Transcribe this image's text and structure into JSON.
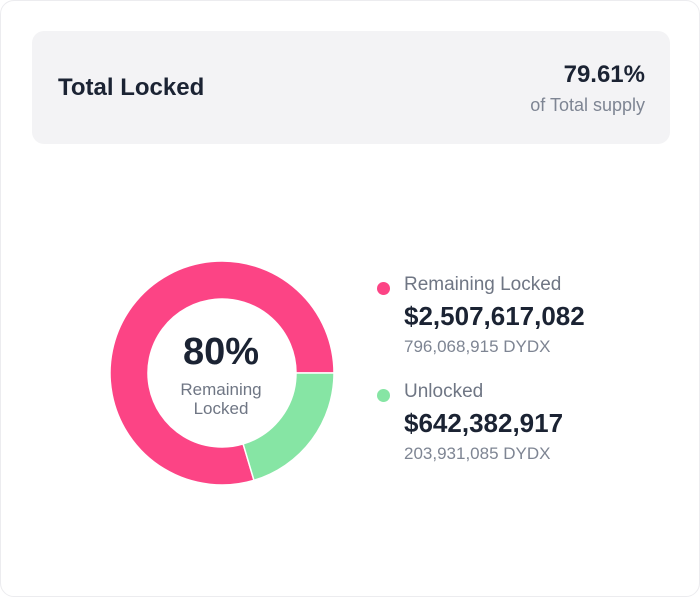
{
  "header": {
    "title": "Total Locked",
    "percent": "79.61%",
    "subtitle": "of Total supply"
  },
  "center": {
    "percent": "80%",
    "label": "Remaining Locked"
  },
  "legend": [
    {
      "label": "Remaining Locked",
      "value": "$2,507,617,082",
      "amount": "796,068,915 DYDX",
      "color": "#fc4485"
    },
    {
      "label": "Unlocked",
      "value": "$642,382,917",
      "amount": "203,931,085 DYDX",
      "color": "#86e5a4"
    }
  ],
  "chart_data": {
    "type": "pie",
    "title": "Total Locked",
    "categories": [
      "Remaining Locked",
      "Unlocked"
    ],
    "values": [
      796068915,
      203931085
    ],
    "usd_values": [
      2507617082,
      642382917
    ],
    "colors": [
      "#fc4485",
      "#86e5a4"
    ],
    "center_text": "80%",
    "legend_position": "right"
  }
}
